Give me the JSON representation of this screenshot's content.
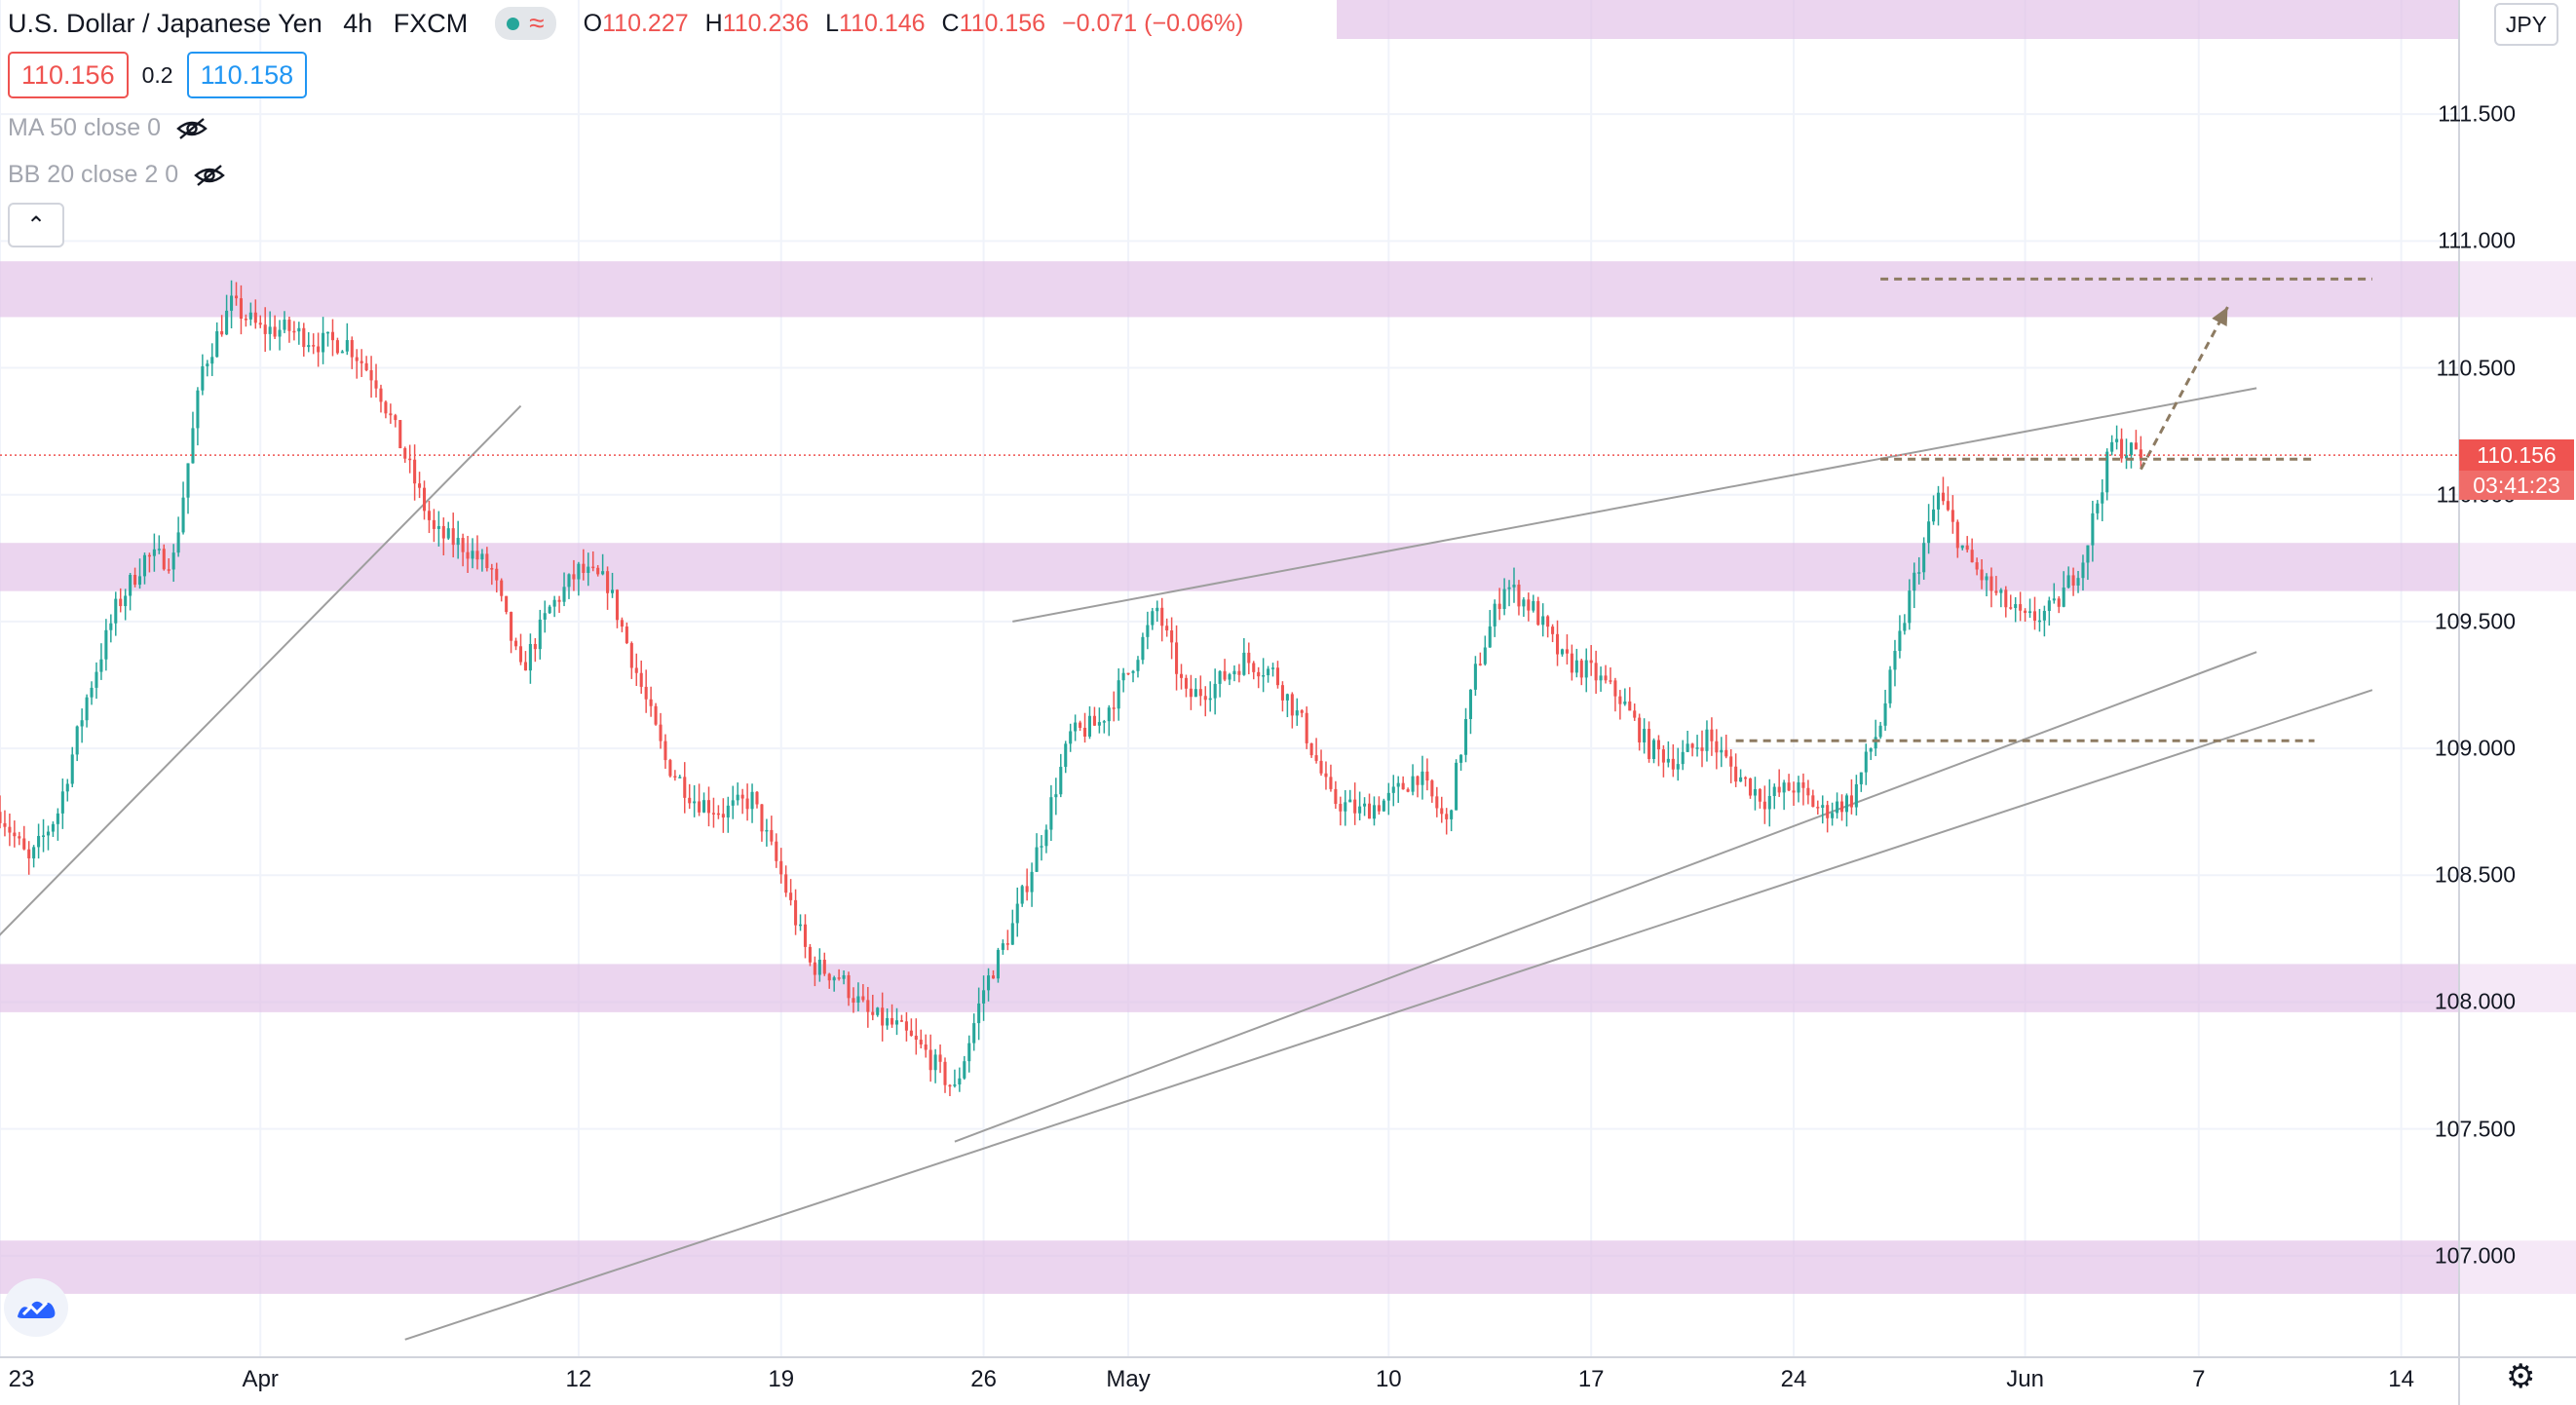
{
  "header": {
    "title": "U.S. Dollar / Japanese Yen",
    "interval": "4h",
    "source": "FXCM",
    "ohlc": {
      "o_label": "O",
      "o": "110.227",
      "h_label": "H",
      "h": "110.236",
      "l_label": "L",
      "l": "110.146",
      "c_label": "C",
      "c": "110.156",
      "change": "−0.071 (−0.06%)"
    }
  },
  "trade": {
    "sell": "110.156",
    "spread": "0.2",
    "buy": "110.158"
  },
  "indicators": [
    {
      "label": "MA 50 close 0"
    },
    {
      "label": "BB 20 close 2 0"
    }
  ],
  "axis": {
    "currency": "JPY",
    "current_price": "110.156",
    "countdown": "03:41:23"
  },
  "icons": {
    "collapse": "chevron-up-icon",
    "visibility": "eye-off-icon",
    "logo": "tradingview-logo-icon",
    "settings": "gear-icon"
  },
  "colors": {
    "up": "#26a69a",
    "down": "#ef5350",
    "zone": "#e1bee7",
    "trendline": "#9e9e9e",
    "projection": "#8d7b62",
    "price_line": "#ef5350"
  },
  "chart_data": {
    "type": "candlestick",
    "title": "U.S. Dollar / Japanese Yen",
    "interval": "4h",
    "source": "FXCM",
    "y_range": [
      106.6,
      111.95
    ],
    "y_ticks": [
      "107.000",
      "107.500",
      "108.000",
      "108.500",
      "109.000",
      "109.500",
      "110.000",
      "110.500",
      "111.000",
      "111.500"
    ],
    "x_range": [
      "2021-03-23",
      "2021-06-16"
    ],
    "x_ticks": [
      {
        "date": "2021-03-23",
        "label": "23"
      },
      {
        "date": "2021-04-01",
        "label": "Apr"
      },
      {
        "date": "2021-04-12",
        "label": "12"
      },
      {
        "date": "2021-04-19",
        "label": "19"
      },
      {
        "date": "2021-04-26",
        "label": "26"
      },
      {
        "date": "2021-05-01",
        "label": "May"
      },
      {
        "date": "2021-05-10",
        "label": "10"
      },
      {
        "date": "2021-05-17",
        "label": "17"
      },
      {
        "date": "2021-05-24",
        "label": "24"
      },
      {
        "date": "2021-06-01",
        "label": "Jun"
      },
      {
        "date": "2021-06-07",
        "label": "7"
      },
      {
        "date": "2021-06-14",
        "label": "14"
      }
    ],
    "path": [
      [
        "2021-03-23",
        108.75
      ],
      [
        "2021-03-24",
        108.55
      ],
      [
        "2021-03-25",
        108.75
      ],
      [
        "2021-03-26",
        109.2
      ],
      [
        "2021-03-27",
        109.55
      ],
      [
        "2021-03-28",
        109.75
      ],
      [
        "2021-03-29",
        109.75
      ],
      [
        "2021-03-30",
        110.5
      ],
      [
        "2021-03-31",
        110.75
      ],
      [
        "2021-04-01",
        110.65
      ],
      [
        "2021-04-02",
        110.65
      ],
      [
        "2021-04-03",
        110.6
      ],
      [
        "2021-04-04",
        110.6
      ],
      [
        "2021-04-05",
        110.45
      ],
      [
        "2021-04-06",
        110.15
      ],
      [
        "2021-04-07",
        109.85
      ],
      [
        "2021-04-08",
        109.8
      ],
      [
        "2021-04-09",
        109.7
      ],
      [
        "2021-04-10",
        109.3
      ],
      [
        "2021-04-11",
        109.55
      ],
      [
        "2021-04-12",
        109.7
      ],
      [
        "2021-04-13",
        109.65
      ],
      [
        "2021-04-14",
        109.3
      ],
      [
        "2021-04-15",
        108.95
      ],
      [
        "2021-04-16",
        108.8
      ],
      [
        "2021-04-17",
        108.75
      ],
      [
        "2021-04-18",
        108.8
      ],
      [
        "2021-04-19",
        108.5
      ],
      [
        "2021-04-20",
        108.15
      ],
      [
        "2021-04-21",
        108.1
      ],
      [
        "2021-04-22",
        107.95
      ],
      [
        "2021-04-23",
        107.9
      ],
      [
        "2021-04-24",
        107.8
      ],
      [
        "2021-04-25",
        107.65
      ],
      [
        "2021-04-26",
        108.05
      ],
      [
        "2021-04-27",
        108.3
      ],
      [
        "2021-04-28",
        108.65
      ],
      [
        "2021-04-29",
        109.05
      ],
      [
        "2021-04-30",
        109.1
      ],
      [
        "2021-05-01",
        109.3
      ],
      [
        "2021-05-02",
        109.55
      ],
      [
        "2021-05-03",
        109.2
      ],
      [
        "2021-05-04",
        109.25
      ],
      [
        "2021-05-05",
        109.35
      ],
      [
        "2021-05-06",
        109.3
      ],
      [
        "2021-05-07",
        109.1
      ],
      [
        "2021-05-08",
        108.8
      ],
      [
        "2021-05-09",
        108.75
      ],
      [
        "2021-05-10",
        108.8
      ],
      [
        "2021-05-11",
        108.9
      ],
      [
        "2021-05-12",
        108.7
      ],
      [
        "2021-05-13",
        109.3
      ],
      [
        "2021-05-14",
        109.65
      ],
      [
        "2021-05-15",
        109.55
      ],
      [
        "2021-05-16",
        109.35
      ],
      [
        "2021-05-17",
        109.3
      ],
      [
        "2021-05-18",
        109.2
      ],
      [
        "2021-05-19",
        109.0
      ],
      [
        "2021-05-20",
        108.95
      ],
      [
        "2021-05-21",
        109.05
      ],
      [
        "2021-05-22",
        108.9
      ],
      [
        "2021-05-23",
        108.8
      ],
      [
        "2021-05-24",
        108.85
      ],
      [
        "2021-05-25",
        108.75
      ],
      [
        "2021-05-26",
        108.8
      ],
      [
        "2021-05-27",
        109.1
      ],
      [
        "2021-05-28",
        109.6
      ],
      [
        "2021-05-29",
        110.0
      ],
      [
        "2021-05-30",
        109.75
      ],
      [
        "2021-05-31",
        109.6
      ],
      [
        "2021-06-01",
        109.5
      ],
      [
        "2021-06-02",
        109.55
      ],
      [
        "2021-06-03",
        109.75
      ],
      [
        "2021-06-04",
        110.2
      ],
      [
        "2021-06-05",
        110.156
      ]
    ],
    "zones": [
      {
        "from": 110.7,
        "to": 110.92
      },
      {
        "from": 109.62,
        "to": 109.81
      },
      {
        "from": 107.96,
        "to": 108.15
      },
      {
        "from": 106.85,
        "to": 107.06
      }
    ],
    "trendlines": [
      {
        "from": [
          "2021-03-22",
          108.15
        ],
        "to": [
          "2021-04-10",
          110.35
        ]
      },
      {
        "from": [
          "2021-04-27",
          109.5
        ],
        "to": [
          "2021-06-09",
          110.42
        ]
      },
      {
        "from": [
          "2021-04-25",
          107.45
        ],
        "to": [
          "2021-06-09",
          109.38
        ]
      },
      {
        "from": [
          "2021-04-06",
          106.67
        ],
        "to": [
          "2021-06-13",
          109.23
        ]
      }
    ],
    "levels": [
      {
        "price": 110.85,
        "from": "2021-05-27",
        "to": "2021-06-13"
      },
      {
        "price": 110.14,
        "from": "2021-05-27",
        "to": "2021-06-11"
      },
      {
        "price": 109.03,
        "from": "2021-05-22",
        "to": "2021-06-11"
      }
    ],
    "projection": {
      "from": [
        "2021-06-05",
        110.1
      ],
      "to": [
        "2021-06-08",
        110.74
      ]
    },
    "last_price": 110.156
  }
}
